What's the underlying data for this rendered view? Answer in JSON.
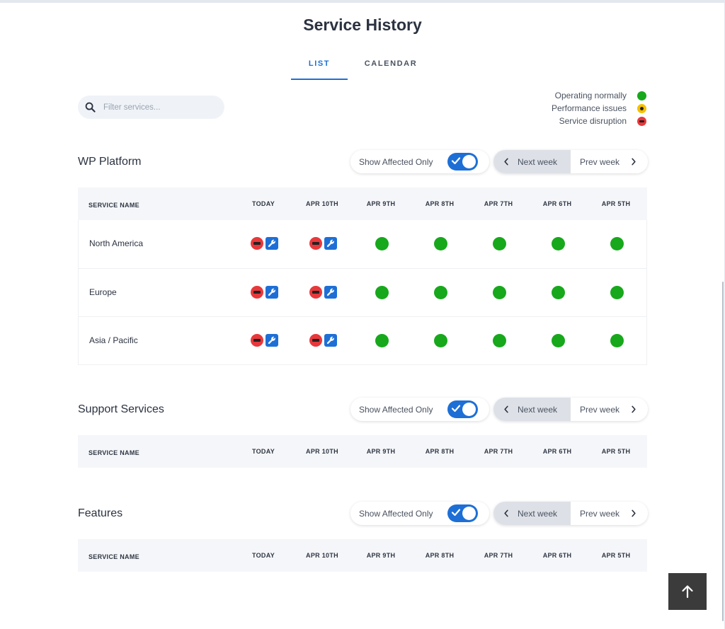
{
  "page": {
    "title": "Service History"
  },
  "tabs": [
    {
      "label": "LIST",
      "active": true
    },
    {
      "label": "CALENDAR",
      "active": false
    }
  ],
  "search": {
    "placeholder": "Filter services...",
    "value": ""
  },
  "legend": [
    {
      "label": "Operating normally",
      "status": "green"
    },
    {
      "label": "Performance issues",
      "status": "yellow"
    },
    {
      "label": "Service disruption",
      "status": "red"
    }
  ],
  "controls": {
    "affected_label": "Show Affected Only",
    "affected_on": true,
    "next_week": "Next week",
    "prev_week": "Prev week"
  },
  "columns": [
    "SERVICE NAME",
    "TODAY",
    "APR 10TH",
    "APR 9TH",
    "APR 8TH",
    "APR 7TH",
    "APR 6TH",
    "APR 5TH"
  ],
  "sections": [
    {
      "title": "WP Platform",
      "rows": [
        {
          "name": "North America",
          "statuses": [
            "disruption+maintenance",
            "disruption+maintenance",
            "normal",
            "normal",
            "normal",
            "normal",
            "normal"
          ]
        },
        {
          "name": "Europe",
          "statuses": [
            "disruption+maintenance",
            "disruption+maintenance",
            "normal",
            "normal",
            "normal",
            "normal",
            "normal"
          ]
        },
        {
          "name": "Asia / Pacific",
          "statuses": [
            "disruption+maintenance",
            "disruption+maintenance",
            "normal",
            "normal",
            "normal",
            "normal",
            "normal"
          ]
        }
      ]
    },
    {
      "title": "Support Services",
      "rows": []
    },
    {
      "title": "Features",
      "rows": []
    }
  ],
  "colors": {
    "accent": "#1d6fd6",
    "operating_normally": "#17a81c",
    "performance_issues": "#f6c000",
    "service_disruption": "#e8383b",
    "maintenance": "#1d6fd6"
  },
  "icons": {
    "search": "search-icon",
    "toggle_check": "check-icon",
    "prev": "chevron-left-icon",
    "next": "chevron-right-icon",
    "maintenance": "wrench-icon",
    "back_to_top": "arrow-up-icon"
  }
}
